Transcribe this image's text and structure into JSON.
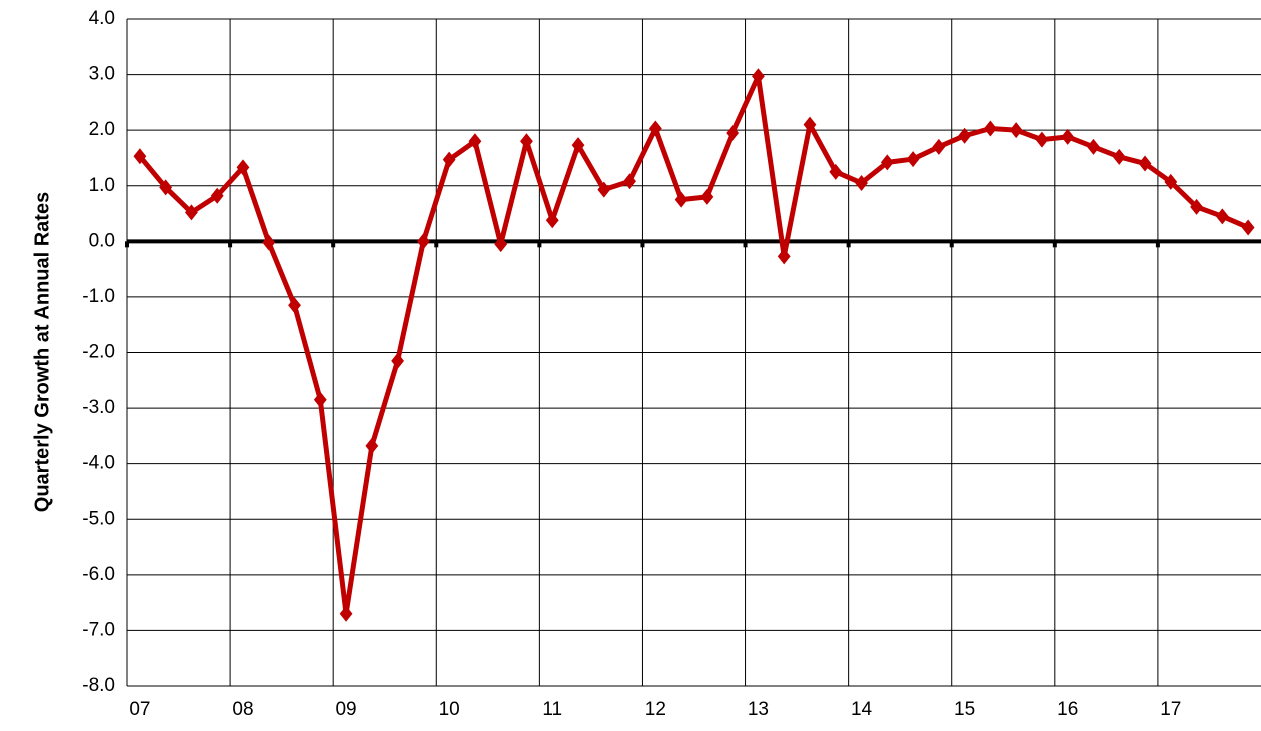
{
  "chart_data": {
    "type": "line",
    "y_label": "Quarterly Growth at Annual Rates",
    "categories": [
      "07",
      null,
      null,
      null,
      "08",
      null,
      null,
      null,
      "09",
      null,
      null,
      null,
      "10",
      null,
      null,
      null,
      "11",
      null,
      null,
      null,
      "12",
      null,
      null,
      null,
      "13",
      null,
      null,
      null,
      "14",
      null,
      null,
      null,
      "15",
      null,
      null,
      null,
      "16",
      null,
      null,
      null,
      "17",
      null,
      null,
      null
    ],
    "series": [
      {
        "color": "#c00000",
        "values": [
          1.53,
          0.97,
          0.52,
          0.82,
          1.33,
          -0.02,
          -1.15,
          -2.85,
          -6.7,
          -3.68,
          -2.15,
          0.0,
          1.47,
          1.8,
          -0.05,
          1.8,
          0.38,
          1.73,
          0.93,
          1.08,
          2.03,
          0.75,
          0.8,
          1.95,
          2.97,
          -0.27,
          2.1,
          1.25,
          1.05,
          1.42,
          1.48,
          1.7,
          1.9,
          2.03,
          2.0,
          1.83,
          1.88,
          1.7,
          1.52,
          1.4,
          1.07,
          0.62,
          0.45,
          0.25
        ]
      }
    ],
    "ylim": [
      -8,
      4
    ],
    "yticks": [
      {
        "value": -8,
        "label": "-8.0"
      },
      {
        "value": -7,
        "label": "-7.0"
      },
      {
        "value": -6,
        "label": "-6.0"
      },
      {
        "value": -5,
        "label": "-5.0"
      },
      {
        "value": -4,
        "label": "-4.0"
      },
      {
        "value": -3,
        "label": "-3.0"
      },
      {
        "value": -2,
        "label": "-2.0"
      },
      {
        "value": -1,
        "label": "-1.0"
      },
      {
        "value": 0,
        "label": "0.0"
      },
      {
        "value": 1,
        "label": "1.0"
      },
      {
        "value": 2,
        "label": "2.0"
      },
      {
        "value": 3,
        "label": "3.0"
      },
      {
        "value": 4,
        "label": "4.0"
      }
    ],
    "grid": true
  }
}
